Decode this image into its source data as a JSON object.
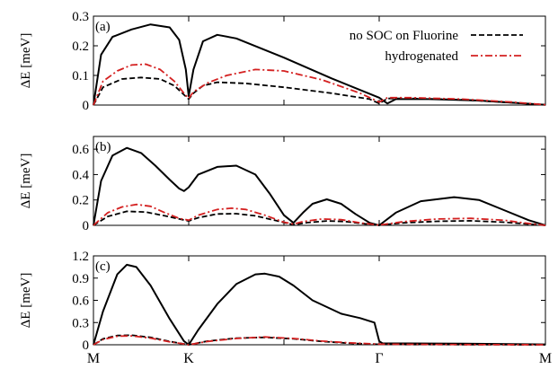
{
  "chart_data": [
    {
      "type": "line",
      "panel_label": "(a)",
      "ylabel": "ΔE [meV]",
      "ylim": [
        0,
        0.3
      ],
      "yticks": [
        0,
        0.1,
        0.2,
        0.3
      ],
      "ytick_labels": [
        "0",
        "0.1",
        "0.2",
        "0.3"
      ],
      "xlim": [
        0,
        4
      ],
      "legend": {
        "placement": "top-right",
        "entries": [
          {
            "label": "no SOC on Fluorine",
            "series": "no_soc"
          },
          {
            "label": "hydrogenated",
            "series": "hydrogenated"
          }
        ]
      },
      "series": [
        {
          "key": "full",
          "color": "#000000",
          "dash": "solid",
          "x": [
            0,
            0.08,
            0.2,
            0.4,
            0.6,
            0.8,
            0.9,
            0.97,
            1.0,
            1.05,
            1.15,
            1.3,
            1.5,
            2.0,
            2.5,
            3.0,
            3.05,
            3.1,
            3.3,
            3.6,
            3.8,
            4.0
          ],
          "y": [
            0,
            0.17,
            0.23,
            0.255,
            0.272,
            0.262,
            0.22,
            0.12,
            0.03,
            0.12,
            0.215,
            0.237,
            0.225,
            0.16,
            0.09,
            0.025,
            0.005,
            0.02,
            0.02,
            0.015,
            0.008,
            0.001
          ]
        },
        {
          "name": "no SOC on Fluorine",
          "key": "no_soc",
          "color": "#000000",
          "dash": "6,3",
          "x": [
            0,
            0.1,
            0.3,
            0.5,
            0.7,
            0.85,
            0.95,
            1.0,
            1.05,
            1.15,
            1.3,
            1.6,
            2.0,
            2.5,
            2.9,
            3.0,
            3.05,
            3.2,
            3.5,
            3.8,
            4.0
          ],
          "y": [
            0,
            0.06,
            0.088,
            0.093,
            0.088,
            0.065,
            0.035,
            0.02,
            0.04,
            0.065,
            0.077,
            0.073,
            0.06,
            0.04,
            0.02,
            0.005,
            0.022,
            0.022,
            0.018,
            0.008,
            0.001
          ]
        },
        {
          "name": "hydrogenated",
          "key": "hydrogenated",
          "color": "#d42020",
          "dash": "8,3,2,3",
          "x": [
            0,
            0.1,
            0.25,
            0.4,
            0.55,
            0.7,
            0.85,
            0.95,
            1.0,
            1.05,
            1.2,
            1.4,
            1.7,
            2.0,
            2.4,
            2.8,
            3.0,
            3.05,
            3.2,
            3.5,
            3.8,
            4.0
          ],
          "y": [
            0,
            0.08,
            0.115,
            0.135,
            0.138,
            0.12,
            0.08,
            0.04,
            0.022,
            0.045,
            0.075,
            0.1,
            0.12,
            0.115,
            0.085,
            0.04,
            0.01,
            0.025,
            0.025,
            0.02,
            0.01,
            0.001
          ]
        }
      ]
    },
    {
      "type": "line",
      "panel_label": "(b)",
      "ylabel": "ΔE [meV]",
      "ylim": [
        0,
        0.7
      ],
      "yticks": [
        0,
        0.2,
        0.4,
        0.6
      ],
      "ytick_labels": [
        "0",
        "0.2",
        "0.4",
        "0.6"
      ],
      "xlim": [
        0,
        4
      ],
      "series": [
        {
          "key": "full",
          "color": "#000000",
          "dash": "solid",
          "x": [
            0,
            0.08,
            0.2,
            0.35,
            0.5,
            0.65,
            0.8,
            0.9,
            0.95,
            1.0,
            1.1,
            1.3,
            1.5,
            1.7,
            1.85,
            2.0,
            2.1,
            2.2,
            2.3,
            2.45,
            2.6,
            2.75,
            2.9,
            3.0,
            3.1,
            3.25,
            3.45,
            3.6,
            3.75,
            3.9,
            4.0
          ],
          "y": [
            0,
            0.35,
            0.55,
            0.61,
            0.57,
            0.47,
            0.36,
            0.29,
            0.27,
            0.3,
            0.4,
            0.46,
            0.47,
            0.4,
            0.25,
            0.08,
            0.02,
            0.1,
            0.17,
            0.205,
            0.17,
            0.09,
            0.02,
            0.0,
            0.1,
            0.19,
            0.222,
            0.2,
            0.12,
            0.04,
            0.0
          ]
        },
        {
          "key": "no_soc",
          "color": "#000000",
          "dash": "6,3",
          "x": [
            0,
            0.15,
            0.35,
            0.55,
            0.75,
            0.9,
            1.0,
            1.1,
            1.3,
            1.5,
            1.7,
            1.9,
            2.1,
            2.25,
            2.45,
            2.65,
            2.85,
            3.0,
            3.15,
            3.35,
            3.55,
            3.75,
            3.9,
            4.0
          ],
          "y": [
            0,
            0.07,
            0.11,
            0.105,
            0.075,
            0.05,
            0.035,
            0.06,
            0.09,
            0.092,
            0.075,
            0.04,
            0.005,
            0.022,
            0.035,
            0.03,
            0.012,
            0.002,
            0.02,
            0.032,
            0.036,
            0.025,
            0.01,
            0.0
          ]
        },
        {
          "key": "hydrogenated",
          "color": "#d42020",
          "dash": "8,3,2,3",
          "x": [
            0,
            0.15,
            0.3,
            0.45,
            0.6,
            0.75,
            0.9,
            1.0,
            1.1,
            1.3,
            1.45,
            1.6,
            1.8,
            2.0,
            2.1,
            2.2,
            2.4,
            2.6,
            2.8,
            3.0,
            3.15,
            3.35,
            3.55,
            3.75,
            3.9,
            4.0
          ],
          "y": [
            0,
            0.1,
            0.145,
            0.165,
            0.15,
            0.1,
            0.055,
            0.04,
            0.08,
            0.125,
            0.135,
            0.125,
            0.08,
            0.025,
            0.01,
            0.03,
            0.05,
            0.045,
            0.02,
            0.002,
            0.03,
            0.05,
            0.055,
            0.04,
            0.015,
            0.0
          ]
        }
      ]
    },
    {
      "type": "line",
      "panel_label": "(c)",
      "ylabel": "ΔE [meV]",
      "ylim": [
        0,
        1.2
      ],
      "yticks": [
        0,
        0.3,
        0.6,
        0.9,
        1.2
      ],
      "ytick_labels": [
        "0",
        "0.3",
        "0.6",
        "0.9",
        "1.2"
      ],
      "xlim": [
        0,
        4
      ],
      "xticks": [
        0,
        1,
        2,
        3,
        4
      ],
      "xtick_labels": [
        "M",
        "K",
        "",
        "Γ",
        "M"
      ],
      "series": [
        {
          "key": "full",
          "color": "#000000",
          "dash": "solid",
          "x": [
            0,
            0.1,
            0.25,
            0.35,
            0.45,
            0.6,
            0.8,
            0.95,
            1.0,
            1.1,
            1.3,
            1.5,
            1.7,
            1.8,
            1.95,
            2.1,
            2.3,
            2.6,
            2.8,
            2.95,
            3.0,
            3.02,
            3.5,
            4.0
          ],
          "y": [
            0,
            0.45,
            0.95,
            1.08,
            1.05,
            0.8,
            0.35,
            0.05,
            0.0,
            0.2,
            0.55,
            0.82,
            0.95,
            0.96,
            0.92,
            0.8,
            0.6,
            0.42,
            0.36,
            0.3,
            0.05,
            0.02,
            0.015,
            0.005
          ]
        },
        {
          "key": "no_soc",
          "color": "#000000",
          "dash": "6,3",
          "x": [
            0,
            0.1,
            0.25,
            0.4,
            0.6,
            0.8,
            1.0,
            1.2,
            1.5,
            1.8,
            2.1,
            2.4,
            2.7,
            3.0,
            3.5,
            4.0
          ],
          "y": [
            0,
            0.08,
            0.125,
            0.13,
            0.1,
            0.045,
            0.0,
            0.05,
            0.09,
            0.1,
            0.08,
            0.045,
            0.02,
            0.005,
            0.003,
            0.0
          ]
        },
        {
          "key": "hydrogenated",
          "color": "#d42020",
          "dash": "8,3,2,3",
          "x": [
            0,
            0.1,
            0.25,
            0.4,
            0.6,
            0.8,
            1.0,
            1.2,
            1.5,
            1.8,
            2.1,
            2.4,
            2.7,
            3.0,
            3.5,
            4.0
          ],
          "y": [
            0,
            0.07,
            0.115,
            0.12,
            0.09,
            0.04,
            0.0,
            0.045,
            0.085,
            0.105,
            0.085,
            0.05,
            0.025,
            0.008,
            0.003,
            0.0
          ]
        }
      ]
    }
  ]
}
